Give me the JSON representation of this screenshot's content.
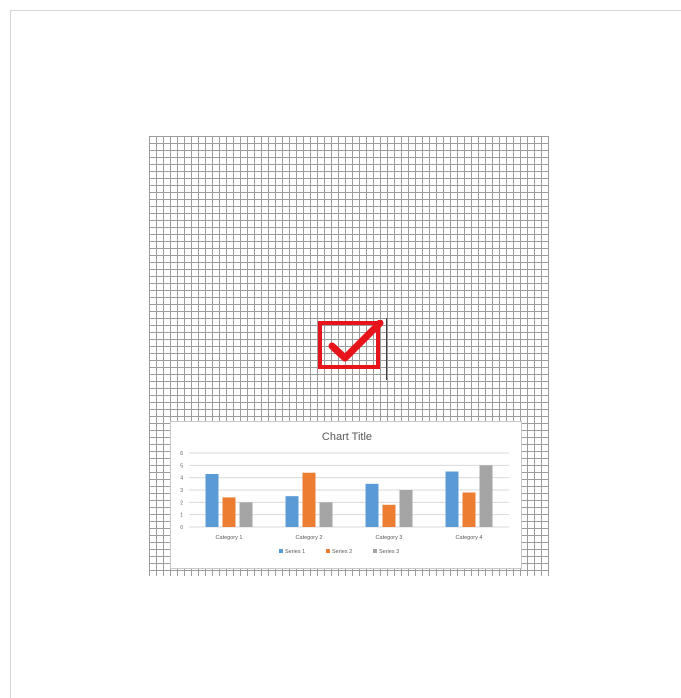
{
  "chart_data": {
    "type": "bar",
    "title": "Chart Title",
    "categories": [
      "Category 1",
      "Category 2",
      "Category 3",
      "Category 4"
    ],
    "series": [
      {
        "name": "Series 1",
        "color": "#5b9bd5",
        "values": [
          4.3,
          2.5,
          3.5,
          4.5
        ]
      },
      {
        "name": "Series 2",
        "color": "#ed7d31",
        "values": [
          2.4,
          4.4,
          1.8,
          2.8
        ]
      },
      {
        "name": "Series 3",
        "color": "#a5a5a5",
        "values": [
          2.0,
          2.0,
          3.0,
          5.0
        ]
      }
    ],
    "ylim": [
      0,
      6
    ],
    "yticks": [
      "0",
      "1",
      "2",
      "3",
      "4",
      "5",
      "6"
    ],
    "grid": true,
    "legend": "bottom"
  },
  "icons": {
    "checkbox": "checked-checkbox-icon",
    "checkbox_color": "#e8141b"
  }
}
